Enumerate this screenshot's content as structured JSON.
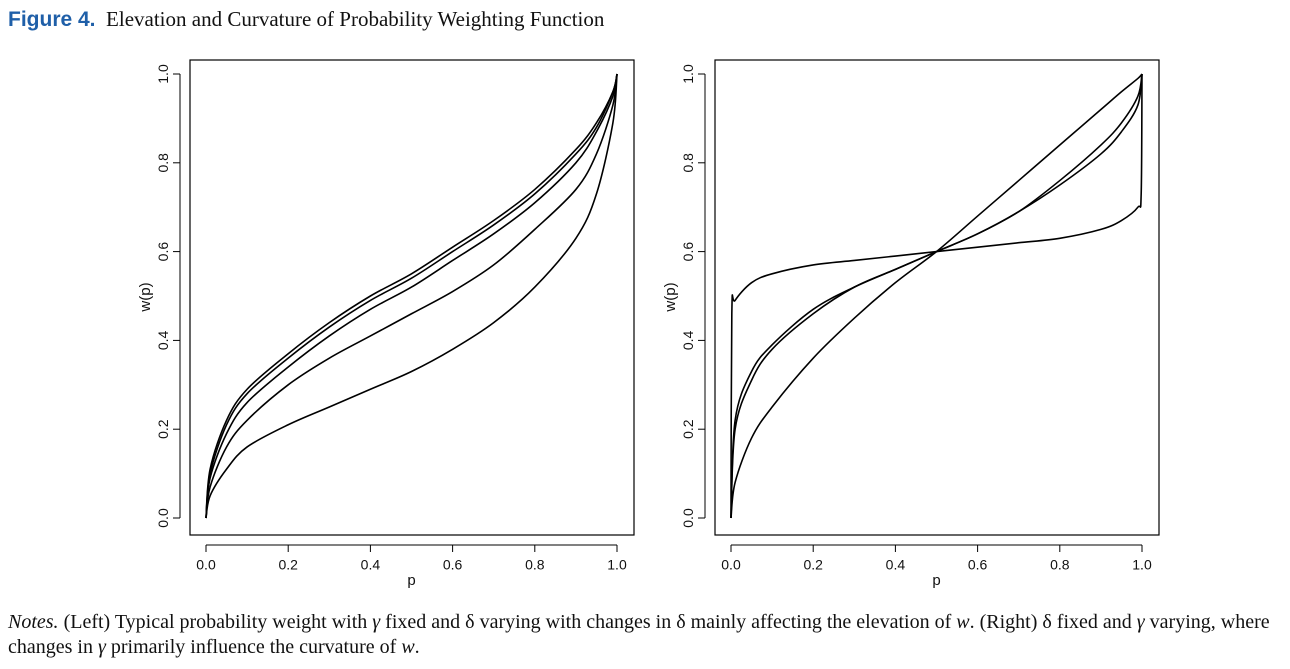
{
  "figure": {
    "label": "Figure 4.",
    "title": "Elevation and Curvature of Probability Weighting Function"
  },
  "chart_data": [
    {
      "type": "line",
      "xlabel": "p",
      "ylabel": "w(p)",
      "xlim": [
        0,
        1
      ],
      "ylim": [
        0,
        1
      ],
      "x_ticks": [
        "0.0",
        "0.2",
        "0.4",
        "0.6",
        "0.8",
        "1.0"
      ],
      "y_ticks": [
        "0.0",
        "0.2",
        "0.4",
        "0.6",
        "0.8",
        "1.0"
      ],
      "grid": false,
      "series": [
        {
          "x": [
            0,
            0.01,
            0.05,
            0.1,
            0.2,
            0.3,
            0.4,
            0.5,
            0.6,
            0.7,
            0.8,
            0.9,
            0.95,
            0.99,
            1
          ],
          "y": [
            0,
            0.11,
            0.22,
            0.29,
            0.37,
            0.44,
            0.5,
            0.55,
            0.61,
            0.67,
            0.74,
            0.83,
            0.89,
            0.96,
            1
          ]
        },
        {
          "x": [
            0,
            0.01,
            0.05,
            0.1,
            0.2,
            0.3,
            0.4,
            0.5,
            0.6,
            0.7,
            0.8,
            0.9,
            0.95,
            0.99,
            1
          ],
          "y": [
            0,
            0.1,
            0.21,
            0.28,
            0.36,
            0.43,
            0.49,
            0.54,
            0.6,
            0.66,
            0.73,
            0.82,
            0.88,
            0.96,
            1
          ]
        },
        {
          "x": [
            0,
            0.01,
            0.05,
            0.1,
            0.2,
            0.3,
            0.4,
            0.5,
            0.6,
            0.7,
            0.8,
            0.9,
            0.95,
            0.99,
            1
          ],
          "y": [
            0,
            0.09,
            0.19,
            0.26,
            0.34,
            0.41,
            0.47,
            0.52,
            0.58,
            0.64,
            0.71,
            0.8,
            0.87,
            0.95,
            1
          ]
        },
        {
          "x": [
            0,
            0.01,
            0.05,
            0.1,
            0.2,
            0.3,
            0.4,
            0.5,
            0.6,
            0.7,
            0.8,
            0.9,
            0.95,
            0.99,
            1
          ],
          "y": [
            0,
            0.07,
            0.16,
            0.22,
            0.3,
            0.36,
            0.41,
            0.46,
            0.51,
            0.57,
            0.65,
            0.74,
            0.82,
            0.93,
            1
          ]
        },
        {
          "x": [
            0,
            0.01,
            0.05,
            0.1,
            0.2,
            0.3,
            0.4,
            0.5,
            0.6,
            0.7,
            0.8,
            0.9,
            0.95,
            0.99,
            1
          ],
          "y": [
            0,
            0.05,
            0.11,
            0.16,
            0.21,
            0.25,
            0.29,
            0.33,
            0.38,
            0.44,
            0.52,
            0.63,
            0.73,
            0.89,
            1
          ]
        }
      ]
    },
    {
      "type": "line",
      "xlabel": "p",
      "ylabel": "w(p)",
      "xlim": [
        0,
        1
      ],
      "ylim": [
        0,
        1
      ],
      "x_ticks": [
        "0.0",
        "0.2",
        "0.4",
        "0.6",
        "0.8",
        "1.0"
      ],
      "y_ticks": [
        "0.0",
        "0.2",
        "0.4",
        "0.6",
        "0.8",
        "1.0"
      ],
      "grid": false,
      "series": [
        {
          "x": [
            0,
            0.002,
            0.01,
            0.05,
            0.1,
            0.2,
            0.3,
            0.4,
            0.5,
            0.6,
            0.7,
            0.8,
            0.9,
            0.95,
            0.99,
            0.998,
            1
          ],
          "y": [
            0,
            0.46,
            0.49,
            0.53,
            0.55,
            0.57,
            0.58,
            0.59,
            0.6,
            0.61,
            0.62,
            0.63,
            0.65,
            0.67,
            0.7,
            0.73,
            1
          ]
        },
        {
          "x": [
            0,
            0.01,
            0.05,
            0.1,
            0.2,
            0.3,
            0.4,
            0.5,
            0.6,
            0.7,
            0.8,
            0.9,
            0.95,
            0.99,
            1
          ],
          "y": [
            0,
            0.22,
            0.33,
            0.39,
            0.47,
            0.52,
            0.56,
            0.6,
            0.64,
            0.69,
            0.75,
            0.82,
            0.87,
            0.93,
            1
          ]
        },
        {
          "x": [
            0,
            0.01,
            0.05,
            0.1,
            0.2,
            0.3,
            0.4,
            0.5,
            0.6,
            0.7,
            0.8,
            0.9,
            0.95,
            0.99,
            1
          ],
          "y": [
            0,
            0.2,
            0.31,
            0.38,
            0.46,
            0.52,
            0.56,
            0.6,
            0.64,
            0.69,
            0.76,
            0.84,
            0.89,
            0.95,
            1
          ]
        },
        {
          "x": [
            0,
            0.01,
            0.05,
            0.1,
            0.2,
            0.3,
            0.4,
            0.5,
            0.6,
            0.7,
            0.8,
            0.9,
            0.95,
            0.99,
            1
          ],
          "y": [
            0,
            0.08,
            0.18,
            0.25,
            0.36,
            0.45,
            0.53,
            0.6,
            0.68,
            0.76,
            0.84,
            0.92,
            0.96,
            0.99,
            1
          ]
        }
      ]
    }
  ],
  "notes": {
    "lead": "Notes.",
    "text_1": " (Left) Typical probability weight with ",
    "gamma_1": "γ",
    "text_2": " fixed and δ varying with changes in δ mainly affecting the elevation of ",
    "w_1": "w",
    "text_3": ". (Right) δ fixed and ",
    "gamma_2": "γ",
    "text_4": " varying, where changes in ",
    "gamma_3": "γ",
    "text_5": " primarily influence the curvature of ",
    "w_2": "w",
    "text_6": "."
  }
}
